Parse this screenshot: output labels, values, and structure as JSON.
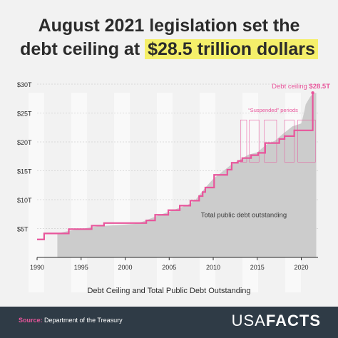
{
  "title_part1": "August 2021 legislation set the",
  "title_part2": "debt ceiling at",
  "title_highlight": "$28.5 trillion dollars",
  "chart_data": {
    "type": "area",
    "title": "Debt Ceiling and Total Public Debt Outstanding",
    "xlim": [
      1990,
      2021.9
    ],
    "ylim": [
      0,
      30
    ],
    "x_ticks": [
      1990,
      1995,
      2000,
      2005,
      2010,
      2015,
      2020
    ],
    "y_ticks": [
      {
        "value": 5,
        "label": "$5T"
      },
      {
        "value": 10,
        "label": "$10T"
      },
      {
        "value": 15,
        "label": "$15T"
      },
      {
        "value": 20,
        "label": "$20T"
      },
      {
        "value": 25,
        "label": "$25T"
      },
      {
        "value": 30,
        "label": "$30T"
      }
    ],
    "grid": true,
    "series": [
      {
        "name": "Total public debt outstanding",
        "kind": "area",
        "color": "#cccccc",
        "x": [
          1992.3,
          1993,
          1994,
          1995,
          1996,
          1997,
          1998,
          1999,
          2000,
          2001,
          2002,
          2003,
          2004,
          2005,
          2006,
          2007,
          2008,
          2009,
          2010,
          2011,
          2012,
          2013,
          2014,
          2015,
          2016,
          2017,
          2018,
          2019,
          2020,
          2020.3,
          2020.5,
          2021,
          2021.3,
          2021.7
        ],
        "values": [
          4.1,
          4.4,
          4.7,
          4.9,
          5.2,
          5.4,
          5.5,
          5.6,
          5.7,
          5.8,
          6.2,
          6.8,
          7.4,
          7.9,
          8.5,
          9.0,
          10.0,
          11.9,
          13.6,
          14.8,
          16.0,
          16.9,
          17.8,
          18.2,
          19.5,
          20.2,
          21.5,
          22.7,
          23.2,
          25.0,
          26.5,
          27.8,
          28.3,
          28.5
        ]
      },
      {
        "name": "Debt ceiling",
        "kind": "step",
        "color": "#e8559b",
        "x": [
          1990,
          1990.8,
          1992.3,
          1993.6,
          1996.2,
          1997.6,
          2002.4,
          2003.4,
          2004.9,
          2006.2,
          2007.4,
          2008.4,
          2008.8,
          2009.1,
          2010.1,
          2011.6,
          2012.1,
          2012.8,
          2013.3,
          2014.3,
          2015.1,
          2015.9,
          2017.3,
          2017.5,
          2018.1,
          2019.2,
          2019.7,
          2021.3
        ],
        "values": [
          3.12,
          4.15,
          4.15,
          4.9,
          5.5,
          5.95,
          6.4,
          7.38,
          8.18,
          8.97,
          9.82,
          10.62,
          11.32,
          12.1,
          14.29,
          15.19,
          16.39,
          16.7,
          17.2,
          17.7,
          18.1,
          19.8,
          19.8,
          20.5,
          21.0,
          22.0,
          22.0,
          28.5
        ]
      }
    ],
    "suspended_periods": [
      [
        2013.1,
        2013.8
      ],
      [
        2014.1,
        2015.2
      ],
      [
        2015.8,
        2017.2
      ],
      [
        2018.1,
        2019.2
      ],
      [
        2019.6,
        2021.6
      ]
    ],
    "annotations": {
      "suspended_label": "“Suspended” periods",
      "ceiling_label": "Debt ceiling",
      "ceiling_value": "$28.5T",
      "area_label": "Total public debt outstanding"
    }
  },
  "source_label": "Source:",
  "source_text": "Department of the Treasury",
  "logo_usa": "USA",
  "logo_facts": "FACTS"
}
